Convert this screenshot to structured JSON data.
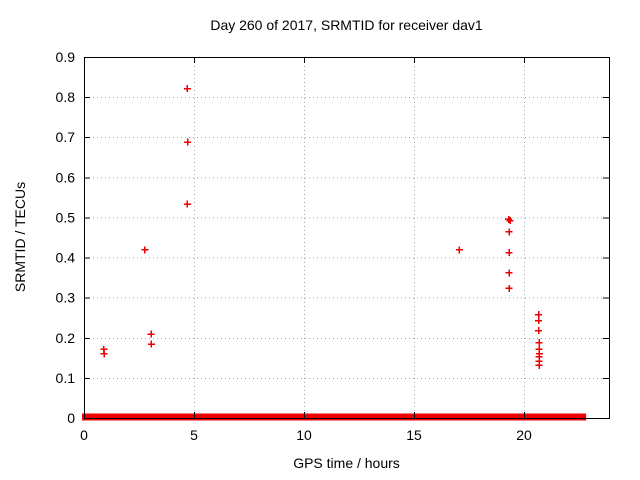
{
  "chart_data": {
    "type": "scatter",
    "title": "Day 260 of 2017, SRMTID for receiver dav1",
    "xlabel": "GPS time / hours",
    "ylabel": "SRMTID / TECUs",
    "xlim": [
      0,
      23.86
    ],
    "ylim": [
      0,
      0.9
    ],
    "xticks": [
      0,
      5,
      10,
      15,
      20
    ],
    "xtick_labels": [
      "0",
      "5",
      "10",
      "15",
      "20"
    ],
    "yticks": [
      0,
      0.1,
      0.2,
      0.3,
      0.4,
      0.5,
      0.6,
      0.7,
      0.8,
      0.9
    ],
    "ytick_labels": [
      "0",
      "0.1",
      "0.2",
      "0.3",
      "0.4",
      "0.5",
      "0.6",
      "0.7",
      "0.8",
      "0.9"
    ],
    "grid": true,
    "legend_position": "none",
    "marker": {
      "shape": "plus",
      "color": "#ee0000",
      "size": 7
    },
    "grid_color": "#a6a6a6",
    "border_color": "#000000",
    "background_color": "#ffffff",
    "points": [
      [
        0.9,
        0.171
      ],
      [
        0.92,
        0.16
      ],
      [
        2.77,
        0.419
      ],
      [
        3.05,
        0.209
      ],
      [
        3.06,
        0.184
      ],
      [
        4.7,
        0.821
      ],
      [
        4.71,
        0.688
      ],
      [
        4.7,
        0.533
      ],
      [
        17.06,
        0.419
      ],
      [
        19.3,
        0.495
      ],
      [
        19.37,
        0.492
      ],
      [
        19.32,
        0.464
      ],
      [
        19.32,
        0.412
      ],
      [
        19.32,
        0.362
      ],
      [
        19.32,
        0.323
      ],
      [
        20.66,
        0.258
      ],
      [
        20.66,
        0.243
      ],
      [
        20.66,
        0.218
      ],
      [
        20.68,
        0.188
      ],
      [
        20.68,
        0.171
      ],
      [
        20.7,
        0.16
      ],
      [
        20.68,
        0.153
      ],
      [
        20.68,
        0.141
      ],
      [
        20.68,
        0.131
      ]
    ],
    "zero_band_value": 0,
    "zero_band_segments_hours": [
      [
        0,
        2.38
      ],
      [
        2.52,
        6.26
      ],
      [
        6.4,
        13.14
      ],
      [
        13.28,
        20.52
      ],
      [
        20.7,
        22.73
      ]
    ]
  }
}
